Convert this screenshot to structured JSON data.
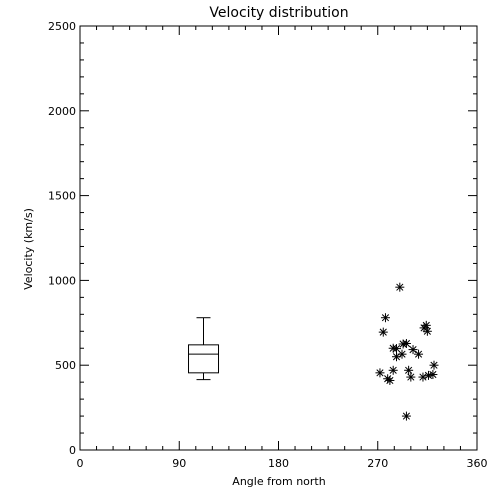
{
  "chart_data": {
    "type": "scatter",
    "title": "Velocity distribution",
    "xlabel": "Angle from north",
    "ylabel": "Velocity (km/s)",
    "xlim": [
      0,
      360
    ],
    "ylim": [
      0,
      2500
    ],
    "x_ticks": [
      0,
      90,
      180,
      270,
      360
    ],
    "y_ticks": [
      0,
      500,
      1000,
      1500,
      2000,
      2500
    ],
    "grid": false,
    "boxplot": {
      "x": 112,
      "min": 415,
      "q1": 455,
      "median": 565,
      "q3": 620,
      "max": 780
    },
    "points": [
      {
        "x": 290,
        "y": 960
      },
      {
        "x": 314,
        "y": 735
      },
      {
        "x": 315,
        "y": 700
      },
      {
        "x": 312,
        "y": 720
      },
      {
        "x": 277,
        "y": 780
      },
      {
        "x": 275,
        "y": 695
      },
      {
        "x": 293,
        "y": 625
      },
      {
        "x": 296,
        "y": 628
      },
      {
        "x": 284,
        "y": 600
      },
      {
        "x": 287,
        "y": 598
      },
      {
        "x": 302,
        "y": 592
      },
      {
        "x": 307,
        "y": 565
      },
      {
        "x": 292,
        "y": 565
      },
      {
        "x": 287,
        "y": 550
      },
      {
        "x": 321,
        "y": 500
      },
      {
        "x": 298,
        "y": 470
      },
      {
        "x": 284,
        "y": 470
      },
      {
        "x": 272,
        "y": 455
      },
      {
        "x": 316,
        "y": 440
      },
      {
        "x": 320,
        "y": 445
      },
      {
        "x": 300,
        "y": 430
      },
      {
        "x": 279,
        "y": 420
      },
      {
        "x": 281,
        "y": 410
      },
      {
        "x": 311,
        "y": 430
      },
      {
        "x": 296,
        "y": 200
      }
    ]
  }
}
